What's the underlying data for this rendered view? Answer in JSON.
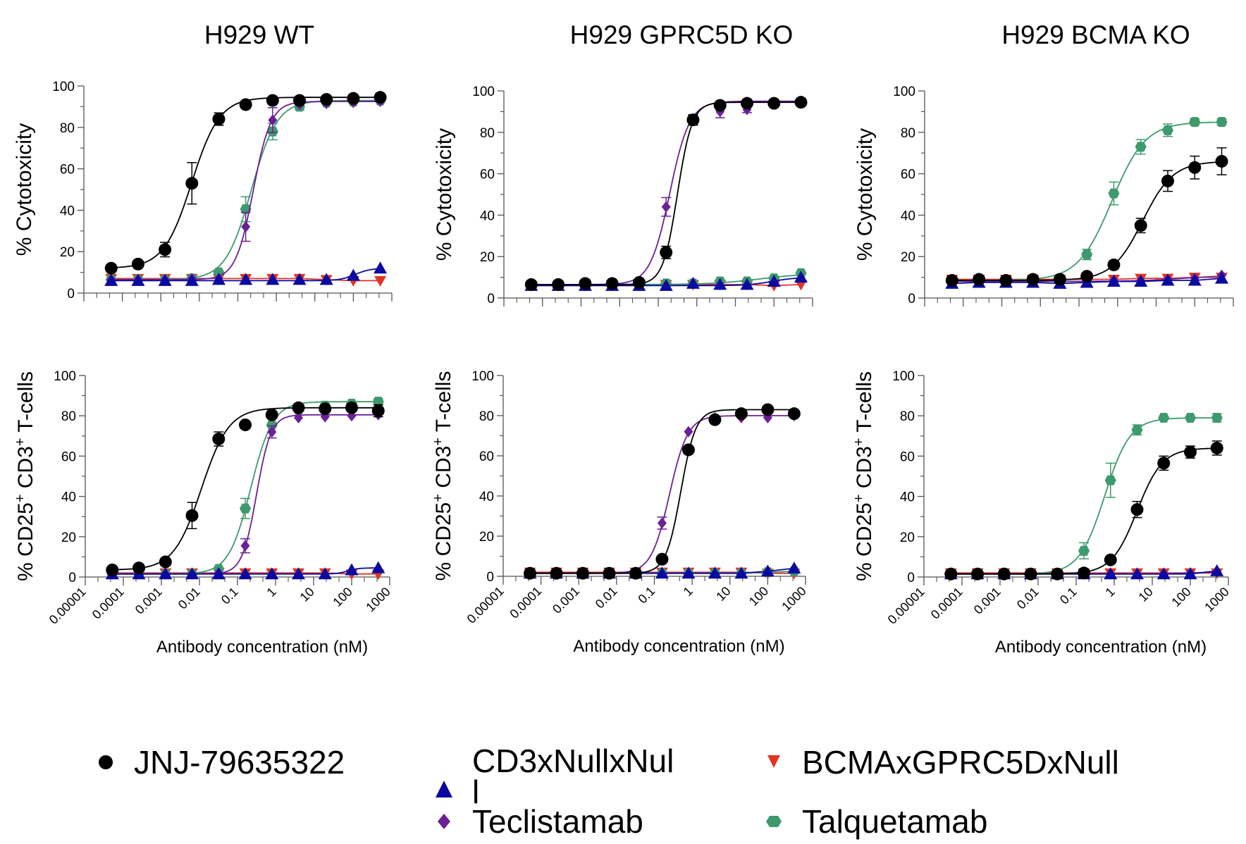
{
  "figure": {
    "x_axis_label": "Antibody concentration (nM)",
    "y_axis_label_top": "% Cytotoxicity",
    "y_axis_label_bottom": "% CD25+ CD3+ T-cells"
  },
  "legend": {
    "placement": "bottom",
    "items": [
      {
        "name": "JNJ-79635322",
        "label": "JNJ-79635322",
        "marker": "circle",
        "color": "#000000"
      },
      {
        "name": "CD3xNullxNull",
        "label": "CD3xNullxNul\nl",
        "label_line1": "CD3xNullxNul",
        "label_line2": "l",
        "marker": "triangle-up",
        "color": "#0a0aa0"
      },
      {
        "name": "Teclistamab",
        "label": "Teclistamab",
        "marker": "diamond",
        "color": "#6c2095"
      },
      {
        "name": "BCMAxGPRC5DxNull",
        "label": "BCMAxGPRC5DxNull",
        "marker": "triangle-down",
        "color": "#e03524"
      },
      {
        "name": "Talquetamab",
        "label": "Talquetamab",
        "marker": "hexagon",
        "color": "#3e9a6c"
      }
    ]
  },
  "chart_data": [
    {
      "type": "scatter",
      "panel": "top-left",
      "title": "H929 WT",
      "xlabel": "",
      "ylabel": "% Cytotoxicity",
      "xscale": "log",
      "xlim": [
        1e-05,
        1000
      ],
      "ylim": [
        0,
        100
      ],
      "yticks": [
        0,
        20,
        40,
        60,
        80,
        100
      ],
      "xticks": [],
      "x": [
        5.12e-05,
        0.000256,
        0.00128,
        0.0064,
        0.032,
        0.16,
        0.8,
        4,
        20,
        100,
        500
      ],
      "series": [
        {
          "name": "JNJ-79635322",
          "values": [
            12,
            14,
            21,
            53,
            84,
            91,
            93,
            93,
            93.5,
            94,
            94.5
          ],
          "errors": [
            0,
            0,
            3.5,
            10,
            3,
            0,
            0,
            0,
            0,
            0,
            0
          ]
        },
        {
          "name": "CD3xNullxNull",
          "values": [
            6,
            6,
            6,
            6,
            6.5,
            6.5,
            6.5,
            6.5,
            6.5,
            8.5,
            12
          ],
          "errors": [
            0,
            0,
            0,
            0,
            0,
            0,
            0,
            0,
            0,
            0,
            0
          ]
        },
        {
          "name": "Teclistamab",
          "values": [
            6.5,
            6.5,
            6.5,
            7,
            7,
            32,
            83.5,
            91,
            91.5,
            92,
            92.5
          ],
          "errors": [
            0,
            0,
            0,
            0,
            0,
            7,
            6,
            0,
            0,
            0,
            0
          ]
        },
        {
          "name": "BCMAxGPRC5DxNull",
          "values": [
            7,
            7,
            7,
            7,
            7,
            7,
            7,
            7,
            6.5,
            6,
            6
          ],
          "errors": [
            0,
            0,
            0,
            0,
            0,
            0,
            0,
            0,
            0,
            0,
            0
          ]
        },
        {
          "name": "Talquetamab",
          "values": [
            6.5,
            6.5,
            6.5,
            7,
            10,
            40.5,
            78,
            90,
            92,
            92.5,
            93
          ],
          "errors": [
            0,
            0,
            0,
            0,
            0,
            6,
            4,
            1.5,
            0,
            0,
            0
          ]
        }
      ]
    },
    {
      "type": "scatter",
      "panel": "top-middle",
      "title": "H929 GPRC5D KO",
      "xlabel": "",
      "ylabel": "% Cytotoxicity",
      "xscale": "log",
      "xlim": [
        1e-05,
        1000
      ],
      "ylim": [
        0,
        100
      ],
      "yticks": [
        0,
        20,
        40,
        60,
        80,
        100
      ],
      "xticks": [],
      "x": [
        5.12e-05,
        0.000256,
        0.00128,
        0.0064,
        0.032,
        0.16,
        0.8,
        4,
        20,
        100,
        500
      ],
      "series": [
        {
          "name": "JNJ-79635322",
          "values": [
            6.5,
            6.5,
            7,
            7,
            7.5,
            22,
            86,
            93,
            94,
            94,
            94.5
          ],
          "errors": [
            0,
            0,
            0,
            0,
            0,
            3,
            2.5,
            0,
            0,
            0,
            0
          ]
        },
        {
          "name": "CD3xNullxNull",
          "values": [
            6,
            6,
            6,
            6,
            6,
            6,
            7,
            6.5,
            6.5,
            8,
            10
          ],
          "errors": [
            0,
            0,
            0,
            0,
            0,
            0,
            0,
            0,
            0,
            0,
            0
          ]
        },
        {
          "name": "Teclistamab",
          "values": [
            6.5,
            6.5,
            6.5,
            6.5,
            7,
            44,
            86,
            90,
            91,
            94,
            95
          ],
          "errors": [
            0,
            0,
            0,
            0,
            0,
            4.5,
            2.5,
            3,
            1.5,
            0,
            1
          ]
        },
        {
          "name": "BCMAxGPRC5DxNull",
          "values": [
            6,
            6,
            6,
            6,
            6,
            6.5,
            6.5,
            6.5,
            6.5,
            6,
            6.5
          ],
          "errors": [
            0,
            0,
            0,
            0,
            0,
            0,
            0,
            0,
            0,
            0,
            0
          ]
        },
        {
          "name": "Talquetamab",
          "values": [
            6.5,
            6.5,
            6.5,
            6.5,
            6.5,
            7,
            7,
            8,
            8,
            9.5,
            12
          ],
          "errors": [
            0,
            0,
            0,
            0,
            0,
            0,
            0,
            0,
            0,
            0,
            0
          ]
        }
      ]
    },
    {
      "type": "scatter",
      "panel": "top-right",
      "title": "H929 BCMA KO",
      "xlabel": "",
      "ylabel": "% Cytotoxicity",
      "xscale": "log",
      "xlim": [
        1e-05,
        1000
      ],
      "ylim": [
        0,
        100
      ],
      "yticks": [
        0,
        20,
        40,
        60,
        80,
        100
      ],
      "xticks": [],
      "x": [
        5.12e-05,
        0.000256,
        0.00128,
        0.0064,
        0.032,
        0.16,
        0.8,
        4,
        20,
        100,
        500
      ],
      "series": [
        {
          "name": "JNJ-79635322",
          "values": [
            8.5,
            9,
            8.5,
            9,
            9,
            10.5,
            16,
            35,
            56.5,
            63,
            66
          ],
          "errors": [
            0,
            0,
            0,
            0,
            0,
            0,
            2,
            3.5,
            5,
            5.5,
            6.5
          ]
        },
        {
          "name": "CD3xNullxNull",
          "values": [
            7,
            7.5,
            7.5,
            7.5,
            7,
            7.5,
            8,
            8,
            8.5,
            8.5,
            9.5
          ],
          "errors": [
            0,
            0,
            0,
            0,
            0,
            0,
            0,
            0,
            0,
            0,
            0
          ]
        },
        {
          "name": "Teclistamab",
          "values": [
            8,
            8,
            8,
            8,
            8,
            8,
            8.5,
            8.5,
            9,
            9.5,
            11
          ],
          "errors": [
            0,
            0,
            0,
            0,
            0,
            0,
            0,
            0,
            0,
            0,
            0
          ]
        },
        {
          "name": "BCMAxGPRC5DxNull",
          "values": [
            9,
            9,
            9,
            9,
            9,
            9,
            9,
            9.5,
            9.5,
            10,
            10
          ],
          "errors": [
            0,
            0,
            0,
            0,
            0,
            0,
            0,
            0,
            0,
            0,
            0
          ]
        },
        {
          "name": "Talquetamab",
          "values": [
            8.5,
            8.5,
            8.5,
            9,
            9.5,
            21,
            50.5,
            73,
            81,
            85,
            85
          ],
          "errors": [
            0,
            0,
            0,
            0,
            0,
            2.5,
            5.5,
            3.5,
            3,
            1.5,
            1.5
          ]
        }
      ]
    },
    {
      "type": "scatter",
      "panel": "bottom-left",
      "title": "",
      "xlabel": "Antibody concentration (nM)",
      "ylabel": "% CD25+ CD3+ T-cells",
      "xscale": "log",
      "xlim": [
        1e-05,
        1000
      ],
      "ylim": [
        0,
        100
      ],
      "yticks": [
        0,
        20,
        40,
        60,
        80,
        100
      ],
      "xticks": [
        "0.00001",
        "0.0001",
        "0.001",
        "0.01",
        "0.1",
        "1",
        "10",
        "100",
        "1000"
      ],
      "x": [
        5.12e-05,
        0.000256,
        0.00128,
        0.0064,
        0.032,
        0.16,
        0.8,
        4,
        20,
        100,
        500
      ],
      "series": [
        {
          "name": "JNJ-79635322",
          "values": [
            3.5,
            4.5,
            7.5,
            30.5,
            68.5,
            75.5,
            80.5,
            84,
            83.5,
            84,
            82.5
          ],
          "errors": [
            0,
            0,
            0,
            6.5,
            3.5,
            0,
            0,
            0,
            0,
            0,
            3
          ]
        },
        {
          "name": "CD3xNullxNull",
          "values": [
            1.5,
            1.5,
            1.5,
            1.5,
            1.5,
            1.5,
            1.5,
            1.5,
            1.5,
            3.5,
            4.5
          ],
          "errors": [
            0,
            0,
            0,
            0,
            0,
            0,
            0,
            0,
            0,
            0,
            0
          ]
        },
        {
          "name": "Teclistamab",
          "values": [
            1.5,
            1.5,
            1.5,
            1.5,
            2,
            15.5,
            72,
            79,
            79.5,
            80,
            80.5
          ],
          "errors": [
            0,
            0,
            0,
            0,
            0,
            3.5,
            3,
            0,
            0,
            0,
            0
          ]
        },
        {
          "name": "BCMAxGPRC5DxNull",
          "values": [
            2,
            2,
            2,
            2,
            2,
            2,
            2,
            2,
            2,
            1.5,
            1.5
          ],
          "errors": [
            0,
            0,
            0,
            0,
            0,
            0,
            0,
            0,
            0,
            0,
            0
          ]
        },
        {
          "name": "Talquetamab",
          "values": [
            1.5,
            1.5,
            1.5,
            1.5,
            4,
            34,
            75.5,
            83,
            85,
            86,
            87
          ],
          "errors": [
            0,
            0,
            0,
            0,
            0,
            5,
            0,
            0,
            0,
            0,
            1.5
          ]
        }
      ]
    },
    {
      "type": "scatter",
      "panel": "bottom-middle",
      "title": "",
      "xlabel": "Antibody concentration (nM)",
      "ylabel": "% CD25+ CD3+ T-cells",
      "xscale": "log",
      "xlim": [
        1e-05,
        1000
      ],
      "ylim": [
        0,
        100
      ],
      "yticks": [
        0,
        20,
        40,
        60,
        80,
        100
      ],
      "xticks": [
        "0.00001",
        "0.0001",
        "0.001",
        "0.01",
        "0.1",
        "1",
        "10",
        "100",
        "1000"
      ],
      "x": [
        5.12e-05,
        0.000256,
        0.00128,
        0.0064,
        0.032,
        0.16,
        0.8,
        4,
        20,
        100,
        500
      ],
      "series": [
        {
          "name": "JNJ-79635322",
          "values": [
            1.5,
            1.5,
            1.5,
            1.5,
            1.5,
            8.5,
            63,
            78,
            81,
            83,
            81
          ],
          "errors": [
            0,
            0,
            0,
            0,
            0,
            0,
            0,
            0,
            0,
            0,
            0
          ]
        },
        {
          "name": "CD3xNullxNull",
          "values": [
            1.5,
            1.5,
            1.5,
            1.5,
            1.5,
            1.5,
            1.5,
            1.5,
            1.5,
            2.5,
            4
          ],
          "errors": [
            0,
            0,
            0,
            0,
            0,
            0,
            0,
            0,
            0,
            0,
            0
          ]
        },
        {
          "name": "Teclistamab",
          "values": [
            1.5,
            1.5,
            1.5,
            1.5,
            2,
            26.5,
            72,
            79,
            79,
            79,
            80
          ],
          "errors": [
            0,
            0,
            0,
            0,
            0,
            3,
            0,
            0,
            0,
            0,
            0
          ]
        },
        {
          "name": "BCMAxGPRC5DxNull",
          "values": [
            2,
            2,
            2,
            2,
            2,
            2,
            2,
            2,
            2,
            1.5,
            1.5
          ],
          "errors": [
            0,
            0,
            0,
            0,
            0,
            0,
            0,
            0,
            0,
            0,
            0
          ]
        },
        {
          "name": "Talquetamab",
          "values": [
            1.5,
            1.5,
            1.5,
            1.5,
            1.5,
            1.5,
            1.5,
            1.5,
            1.5,
            2,
            2.5
          ],
          "errors": [
            0,
            0,
            0,
            0,
            0,
            0,
            0,
            0,
            0,
            0,
            0
          ]
        }
      ]
    },
    {
      "type": "scatter",
      "panel": "bottom-right",
      "title": "",
      "xlabel": "Antibody concentration (nM)",
      "ylabel": "% CD25+ CD3+ T-cells",
      "xscale": "log",
      "xlim": [
        1e-05,
        1000
      ],
      "ylim": [
        0,
        100
      ],
      "yticks": [
        0,
        20,
        40,
        60,
        80,
        100
      ],
      "xticks": [
        "0.00001",
        "0.0001",
        "0.001",
        "0.01",
        "0.1",
        "1",
        "10",
        "100",
        "1000"
      ],
      "x": [
        5.12e-05,
        0.000256,
        0.00128,
        0.0064,
        0.032,
        0.16,
        0.8,
        4,
        20,
        100,
        500
      ],
      "series": [
        {
          "name": "JNJ-79635322",
          "values": [
            1.5,
            1.5,
            1.5,
            1.5,
            1.5,
            2,
            8.5,
            33.5,
            56.5,
            62,
            64
          ],
          "errors": [
            0,
            0,
            0,
            0,
            0,
            0,
            0,
            4,
            3.5,
            3,
            3.5
          ]
        },
        {
          "name": "CD3xNullxNull",
          "values": [
            1.5,
            1.5,
            1.5,
            1.5,
            1.5,
            1.5,
            1.5,
            1.5,
            1.5,
            1.5,
            3
          ],
          "errors": [
            0,
            0,
            0,
            0,
            0,
            0,
            0,
            0,
            0,
            0,
            0
          ]
        },
        {
          "name": "Teclistamab",
          "values": [
            1.5,
            1.5,
            1.5,
            1.5,
            1.5,
            1.5,
            1.5,
            1.5,
            1.5,
            2,
            2.5
          ],
          "errors": [
            0,
            0,
            0,
            0,
            0,
            0,
            0,
            0,
            0,
            0,
            0
          ]
        },
        {
          "name": "BCMAxGPRC5DxNull",
          "values": [
            2,
            2,
            2,
            2,
            2,
            2,
            2,
            2,
            2,
            2,
            2
          ],
          "errors": [
            0,
            0,
            0,
            0,
            0,
            0,
            0,
            0,
            0,
            0,
            0
          ]
        },
        {
          "name": "Talquetamab",
          "values": [
            1.5,
            1.5,
            1.5,
            1.5,
            1.5,
            13,
            48,
            73,
            79,
            79,
            79
          ],
          "errors": [
            0,
            0,
            0,
            0,
            0,
            4,
            8.5,
            2.5,
            0,
            0,
            2
          ]
        }
      ]
    }
  ]
}
